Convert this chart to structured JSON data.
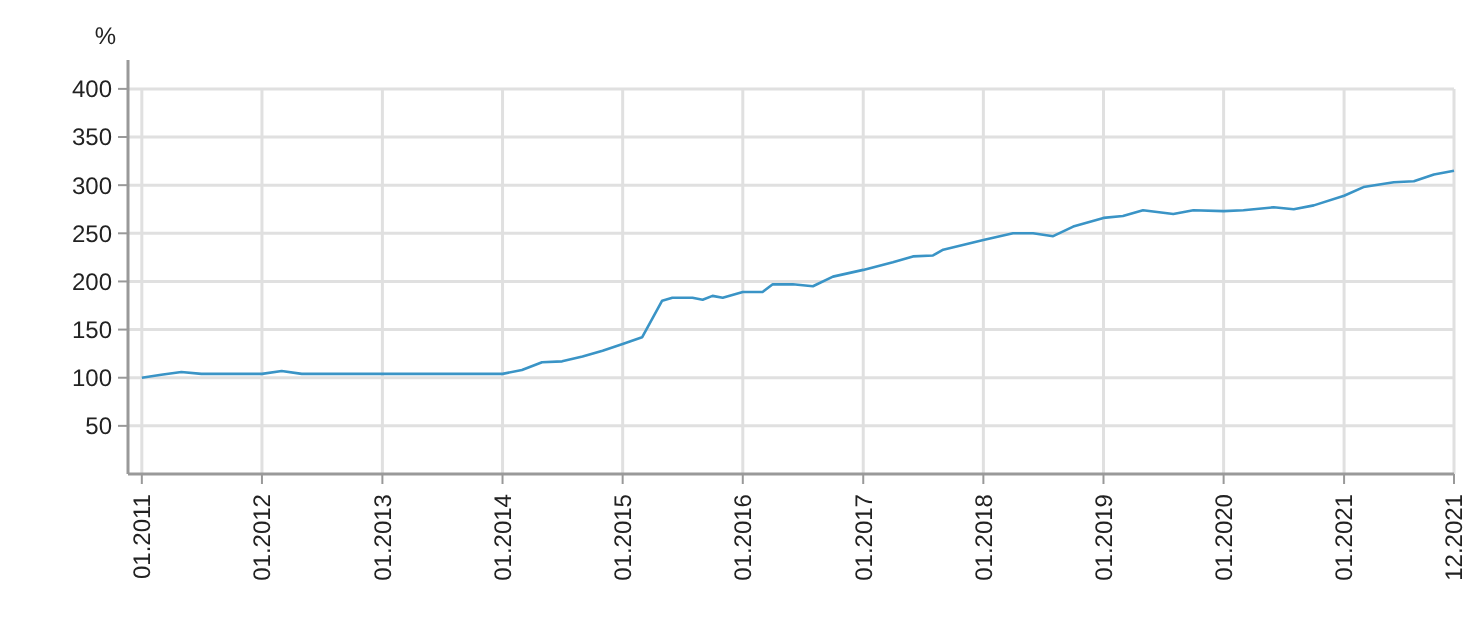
{
  "chart_data": {
    "type": "line",
    "ylabel": "%",
    "color": "#3a94c6",
    "x": [
      "2011-01",
      "2011-03",
      "2011-05",
      "2011-07",
      "2012-01",
      "2012-03",
      "2012-05",
      "2014-01",
      "2014-03",
      "2014-05",
      "2014-07",
      "2014-09",
      "2014-11",
      "2015-01",
      "2015-03",
      "2015-05",
      "2015-06",
      "2015-08",
      "2015-09",
      "2015-10",
      "2015-11",
      "2016-01",
      "2016-03",
      "2016-04",
      "2016-06",
      "2016-08",
      "2016-10",
      "2017-01",
      "2017-04",
      "2017-06",
      "2017-08",
      "2017-09",
      "2018-01",
      "2018-04",
      "2018-06",
      "2018-08",
      "2018-10",
      "2019-01",
      "2019-03",
      "2019-05",
      "2019-08",
      "2019-10",
      "2020-01",
      "2020-03",
      "2020-06",
      "2020-08",
      "2020-10",
      "2021-01",
      "2021-03",
      "2021-06",
      "2021-08",
      "2021-10",
      "2021-12"
    ],
    "values": [
      100,
      103,
      106,
      104,
      104,
      107,
      104,
      104,
      108,
      116,
      117,
      122,
      128,
      135,
      142,
      180,
      183,
      183,
      181,
      185,
      183,
      189,
      189,
      197,
      197,
      195,
      205,
      212,
      220,
      226,
      227,
      233,
      243,
      250,
      250,
      247,
      257,
      266,
      268,
      274,
      270,
      274,
      273,
      274,
      277,
      275,
      279,
      289,
      298,
      303,
      304,
      311,
      315
    ],
    "xlim": [
      "2010-11-20",
      "2021-12"
    ],
    "xticks": [
      {
        "value": "2011-01",
        "label": "01.2011"
      },
      {
        "value": "2012-01",
        "label": "01.2012"
      },
      {
        "value": "2013-01",
        "label": "01.2013"
      },
      {
        "value": "2014-01",
        "label": "01.2014"
      },
      {
        "value": "2015-01",
        "label": "01.2015"
      },
      {
        "value": "2016-01",
        "label": "01.2016"
      },
      {
        "value": "2017-01",
        "label": "01.2017"
      },
      {
        "value": "2018-01",
        "label": "01.2018"
      },
      {
        "value": "2019-01",
        "label": "01.2019"
      },
      {
        "value": "2020-01",
        "label": "01.2020"
      },
      {
        "value": "2021-01",
        "label": "01.2021"
      },
      {
        "value": "2021-12",
        "label": "12.2021"
      }
    ],
    "ylim": [
      0,
      430
    ],
    "yticks": [
      50,
      100,
      150,
      200,
      250,
      300,
      350,
      400
    ],
    "grid": true,
    "marker": "none",
    "line_style": "solid"
  }
}
